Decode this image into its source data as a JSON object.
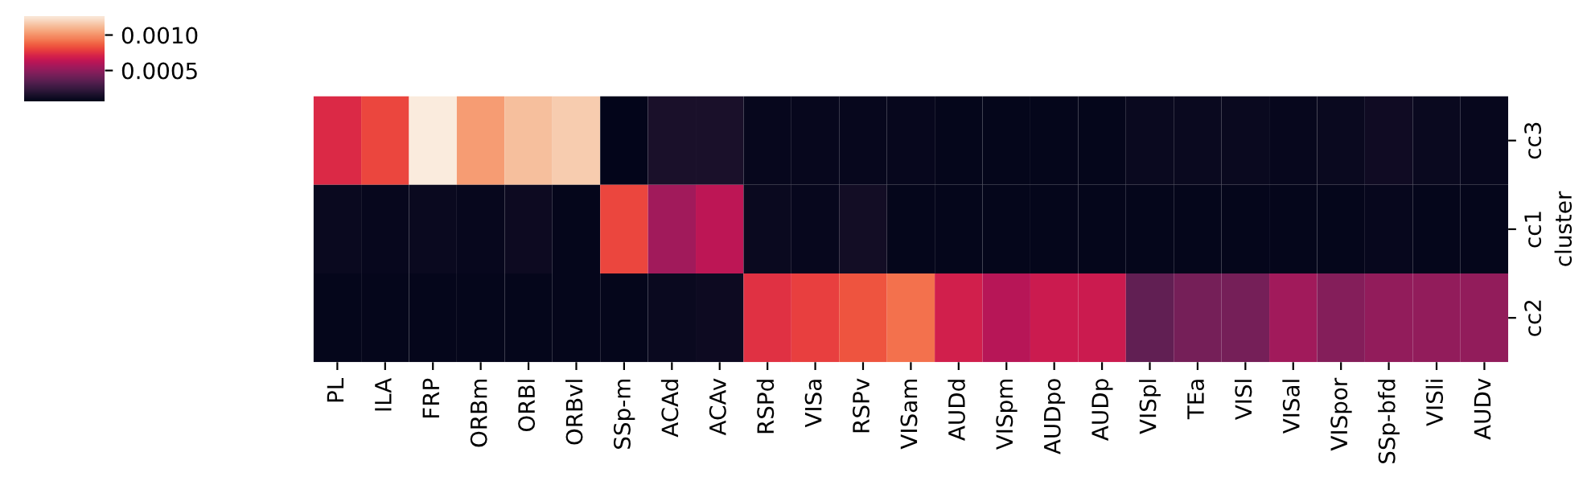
{
  "chart_data": {
    "type": "heatmap",
    "ylabel": "cluster",
    "categories": [
      "PL",
      "ILA",
      "FRP",
      "ORBm",
      "ORBl",
      "ORBvl",
      "SSp-m",
      "ACAd",
      "ACAv",
      "RSPd",
      "VISa",
      "RSPv",
      "VISam",
      "AUDd",
      "VISpm",
      "AUDpo",
      "AUDp",
      "VISpl",
      "TEa",
      "VISl",
      "VISal",
      "VISpor",
      "SSp-bfd",
      "VISli",
      "AUDv"
    ],
    "y_categories": [
      "cc3",
      "cc1",
      "cc2"
    ],
    "cells": [
      [
        0.00073,
        0.00081,
        0.00127,
        0.00103,
        0.00113,
        0.00117,
        7e-05,
        0.00015,
        0.00015,
        9e-05,
        9e-05,
        9e-05,
        9e-05,
        8e-05,
        8e-05,
        8e-05,
        8e-05,
        0.0001,
        0.0001,
        0.0001,
        9e-05,
        0.0001,
        0.00012,
        0.0001,
        9e-05
      ],
      [
        0.0001,
        9e-05,
        0.0001,
        9e-05,
        0.00011,
        8e-05,
        0.00081,
        0.00055,
        0.00063,
        0.0001,
        9e-05,
        0.00013,
        8e-05,
        8e-05,
        8e-05,
        8e-05,
        8e-05,
        8e-05,
        8e-05,
        8e-05,
        8e-05,
        8e-05,
        9e-05,
        8e-05,
        8e-05
      ],
      [
        8e-05,
        8e-05,
        8e-05,
        8e-05,
        8e-05,
        8e-05,
        8e-05,
        0.0001,
        0.00011,
        0.00075,
        0.00079,
        0.00084,
        0.00091,
        0.00069,
        0.00061,
        0.00067,
        0.00067,
        0.00037,
        0.00043,
        0.00043,
        0.00055,
        0.00047,
        0.00051,
        0.00051,
        0.00051
      ]
    ],
    "clim": [
      7e-05,
      0.00127
    ],
    "cticks": [
      {
        "value": 0.0005,
        "label": "0.0005"
      },
      {
        "value": 0.001,
        "label": "0.0010"
      }
    ]
  }
}
